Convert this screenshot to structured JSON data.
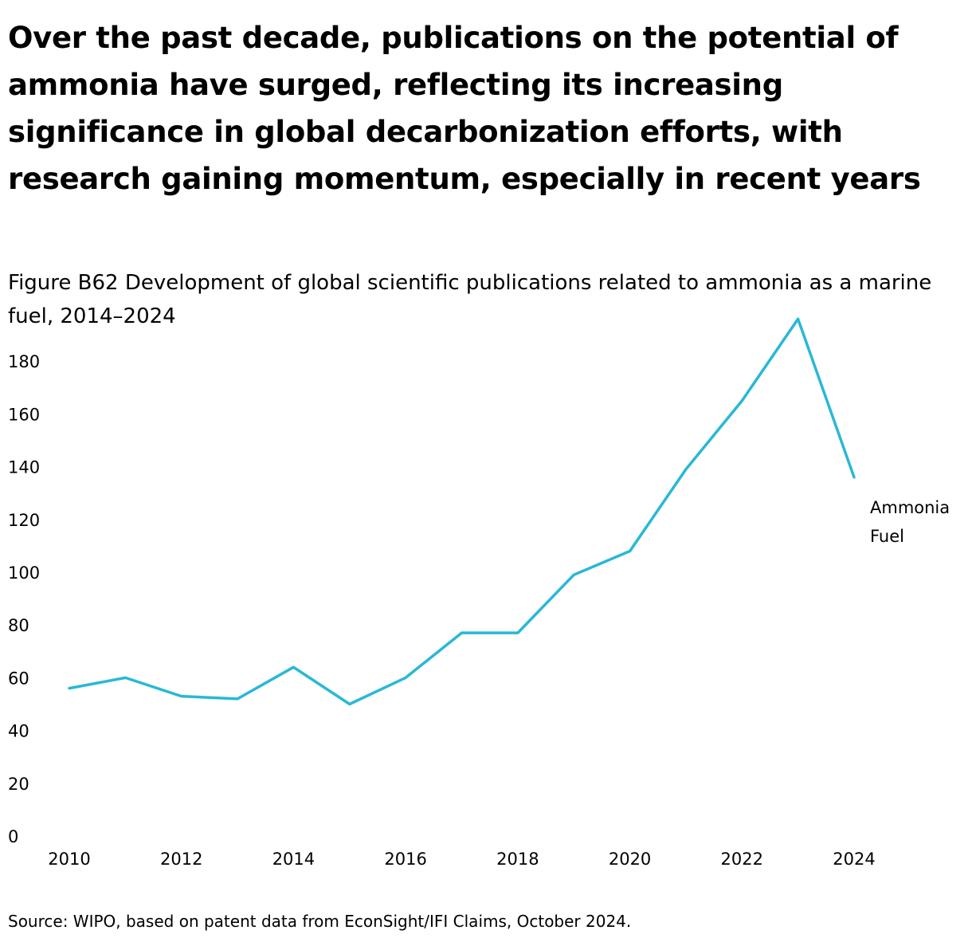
{
  "title": "Over the past decade, publications on the potential of ammonia have surged, reflecting its increasing significance in global decarbonization efforts, with research gaining momentum, especially in recent years",
  "subtitle": "Figure B62 Development of global scientific publications related to ammonia as a marine fuel, 2014–2024",
  "source": "Source: WIPO, based on patent data from EconSight/IFI Claims, October 2024.",
  "chart_data": {
    "type": "line",
    "x": [
      2010,
      2011,
      2012,
      2013,
      2014,
      2015,
      2016,
      2017,
      2018,
      2019,
      2020,
      2021,
      2022,
      2023,
      2024
    ],
    "series": [
      {
        "name": "Ammonia Fuel",
        "label_lines": [
          "Ammonia",
          "Fuel"
        ],
        "values": [
          56,
          60,
          53,
          52,
          64,
          50,
          60,
          77,
          77,
          99,
          108,
          139,
          165,
          196,
          136
        ],
        "color": "#29b8d6"
      }
    ],
    "xticks": [
      "2010",
      "2012",
      "2014",
      "2016",
      "2018",
      "2020",
      "2022",
      "2024"
    ],
    "yticks": [
      "0",
      "20",
      "40",
      "60",
      "80",
      "100",
      "120",
      "140",
      "160",
      "180"
    ],
    "xlim": [
      2010,
      2024
    ],
    "ylim": [
      0,
      200
    ],
    "xlabel": "",
    "ylabel": "",
    "grid": false,
    "legend": "direct-label-right"
  }
}
